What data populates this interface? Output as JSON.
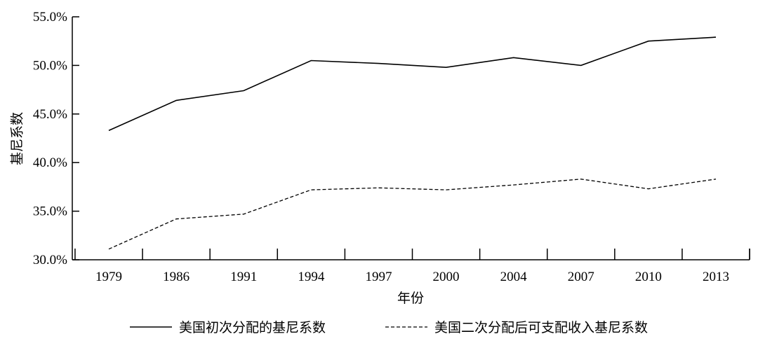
{
  "chart_data": {
    "type": "line",
    "title": "",
    "xlabel": "年份",
    "ylabel": "基尼系数",
    "categories": [
      "1979",
      "1986",
      "1991",
      "1994",
      "1997",
      "2000",
      "2004",
      "2007",
      "2010",
      "2013"
    ],
    "ylim": [
      30.0,
      55.0
    ],
    "yticks": [
      "30.0%",
      "35.0%",
      "40.0%",
      "45.0%",
      "50.0%",
      "55.0%"
    ],
    "grid": false,
    "legend_position": "bottom",
    "series": [
      {
        "name": "美国初次分配的基尼系数",
        "style": "solid",
        "color": "#000000",
        "values": [
          43.3,
          46.4,
          47.4,
          50.5,
          50.2,
          49.8,
          50.8,
          50.0,
          52.5,
          52.9
        ]
      },
      {
        "name": "美国二次分配后可支配收入基尼系数",
        "style": "dashed",
        "color": "#000000",
        "values": [
          31.1,
          34.2,
          34.7,
          37.2,
          37.4,
          37.2,
          37.7,
          38.3,
          37.3,
          38.3
        ]
      }
    ]
  }
}
